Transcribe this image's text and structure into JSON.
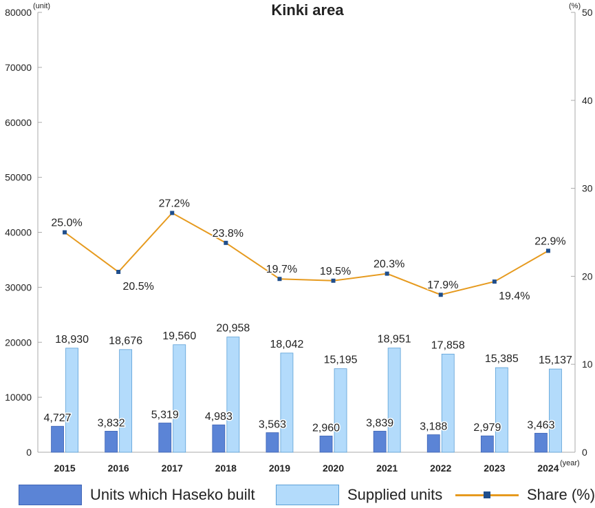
{
  "chart_data": {
    "type": "bar+line",
    "title": "Kinki area",
    "x_unit_label": "(year)",
    "y_left_unit_label": "(unit)",
    "y_right_unit_label": "(%)",
    "categories": [
      "2015",
      "2016",
      "2017",
      "2018",
      "2019",
      "2020",
      "2021",
      "2022",
      "2023",
      "2024"
    ],
    "y_left": {
      "min": 0,
      "max": 80000,
      "ticks": [
        0,
        10000,
        20000,
        30000,
        40000,
        50000,
        60000,
        70000,
        80000
      ]
    },
    "y_right": {
      "min": 0,
      "max": 50,
      "ticks": [
        0,
        10,
        20,
        30,
        40,
        50
      ]
    },
    "series": [
      {
        "name": "Units which Haseko built",
        "kind": "bar",
        "axis": "left",
        "values": [
          4727,
          3832,
          5319,
          4983,
          3563,
          2960,
          3839,
          3188,
          2979,
          3463
        ],
        "labels": [
          "4,727",
          "3,832",
          "5,319",
          "4,983",
          "3,563",
          "2,960",
          "3,839",
          "3,188",
          "2,979",
          "3,463"
        ]
      },
      {
        "name": "Supplied units",
        "kind": "bar",
        "axis": "left",
        "values": [
          18930,
          18676,
          19560,
          20958,
          18042,
          15195,
          18951,
          17858,
          15385,
          15137
        ],
        "labels": [
          "18,930",
          "18,676",
          "19,560",
          "20,958",
          "18,042",
          "15,195",
          "18,951",
          "17,858",
          "15,385",
          "15,137"
        ]
      },
      {
        "name": "Share (%)",
        "kind": "line",
        "axis": "right",
        "values": [
          25.0,
          20.5,
          27.2,
          23.8,
          19.7,
          19.5,
          20.3,
          17.9,
          19.4,
          22.9
        ],
        "labels": [
          "25.0%",
          "20.5%",
          "27.2%",
          "23.8%",
          "19.7%",
          "19.5%",
          "20.3%",
          "17.9%",
          "19.4%",
          "22.9%"
        ],
        "label_positions": [
          "above",
          "below",
          "above",
          "above",
          "above",
          "above",
          "above",
          "above",
          "below",
          "above"
        ]
      }
    ],
    "colors": {
      "built": "#5b84d6",
      "built_border": "#3d63b5",
      "supplied": "#b3dbfb",
      "supplied_border": "#5a9fd6",
      "share_line": "#e69a1e",
      "share_marker": "#1f4e8c",
      "axis": "#aaaaaa"
    }
  },
  "legend": {
    "built_label": "Units which Haseko built",
    "supplied_label": "Supplied units",
    "share_label": "Share (%)"
  }
}
